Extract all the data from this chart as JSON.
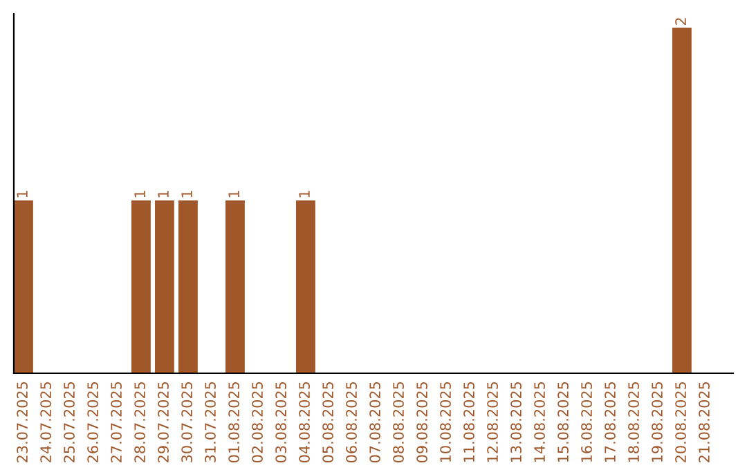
{
  "chart_data": {
    "type": "bar",
    "categories": [
      "23.07.2025",
      "24.07.2025",
      "25.07.2025",
      "26.07.2025",
      "27.07.2025",
      "28.07.2025",
      "29.07.2025",
      "30.07.2025",
      "31.07.2025",
      "01.08.2025",
      "02.08.2025",
      "03.08.2025",
      "04.08.2025",
      "05.08.2025",
      "06.08.2025",
      "07.08.2025",
      "08.08.2025",
      "09.08.2025",
      "10.08.2025",
      "11.08.2025",
      "12.08.2025",
      "13.08.2025",
      "14.08.2025",
      "15.08.2025",
      "16.08.2025",
      "17.08.2025",
      "18.08.2025",
      "19.08.2025",
      "20.08.2025",
      "21.08.2025"
    ],
    "values": [
      1,
      0,
      0,
      0,
      0,
      1,
      1,
      1,
      0,
      1,
      0,
      0,
      1,
      0,
      0,
      0,
      0,
      0,
      0,
      0,
      0,
      0,
      0,
      0,
      0,
      0,
      0,
      0,
      2,
      0
    ],
    "value_labels": [
      "1",
      null,
      null,
      null,
      null,
      "1",
      "1",
      "1",
      null,
      "1",
      null,
      null,
      "1",
      null,
      null,
      null,
      null,
      null,
      null,
      null,
      null,
      null,
      null,
      null,
      null,
      null,
      null,
      null,
      "2",
      null
    ],
    "color": "#a0572a",
    "grid": false,
    "legend": false
  }
}
